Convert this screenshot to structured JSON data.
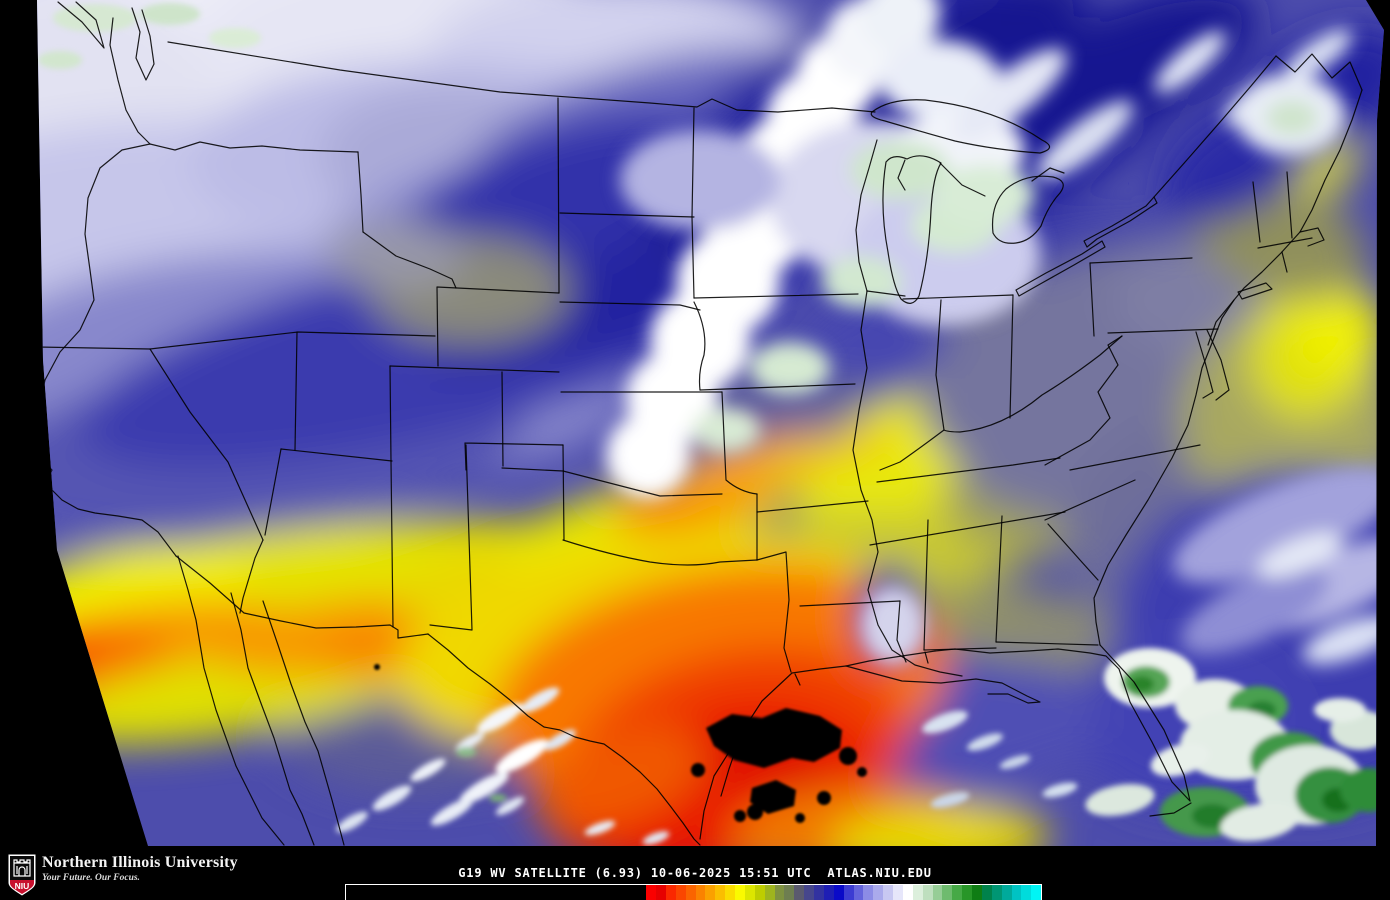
{
  "footer": {
    "university": "Northern Illinois University",
    "tagline": "Your Future. Our Focus.",
    "logo_acronym": "NIU",
    "caption": "G19 WV SATELLITE (6.93) 10-06-2025 15:51 UTC  ATLAS.NIU.EDU",
    "caption_parts": {
      "satellite": "G19",
      "product": "WV SATELLITE",
      "band": "(6.93)",
      "date": "10-06-2025",
      "time": "15:51 UTC",
      "site": "ATLAS.NIU.EDU"
    }
  },
  "colors": {
    "niu_red": "#c8102e",
    "footer_background": "#000000",
    "caption_text": "#ffffff",
    "border_lines": "#000000"
  },
  "chart_data": {
    "type": "heatmap",
    "title": "G19 WV SATELLITE (6.93) 10-06-2025 15:51 UTC",
    "legend_position": "bottom",
    "colorbar": {
      "orientation": "horizontal",
      "black_fraction": 0.432,
      "colors": [
        "#fa0000",
        "#e60000",
        "#fa2800",
        "#fa4600",
        "#fa6400",
        "#fa8200",
        "#faa000",
        "#fabe00",
        "#fadc00",
        "#fafa00",
        "#dce600",
        "#becd00",
        "#9eb41e",
        "#7e9140",
        "#6e7e50",
        "#5a5a6e",
        "#46468c",
        "#3232a0",
        "#1e1eb4",
        "#0a0ac8",
        "#3c3cd2",
        "#6464dc",
        "#8c8ce6",
        "#aaaaec",
        "#c8c8f2",
        "#e6e6fa",
        "#ffffff",
        "#dcefdc",
        "#bedfbe",
        "#96cd96",
        "#6ebb6e",
        "#46a946",
        "#289628",
        "#0f7d14",
        "#00824b",
        "#009673",
        "#00aa9b",
        "#00c3c3",
        "#00dcdc",
        "#00f5f5"
      ]
    }
  }
}
